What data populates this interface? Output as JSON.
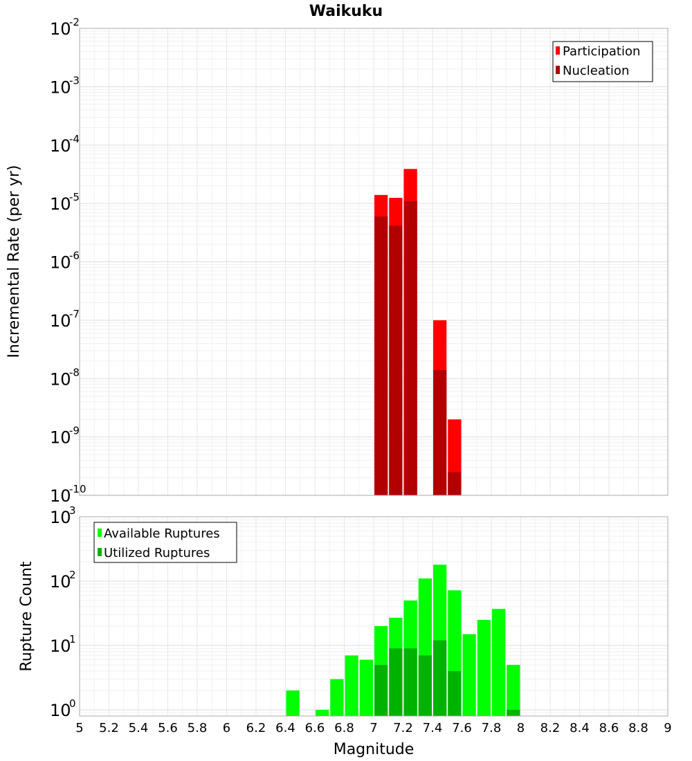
{
  "chart_data": [
    {
      "type": "bar",
      "panel": "top",
      "title": "Waikuku",
      "xlabel": "",
      "ylabel": "Incremental Rate (per yr)",
      "yscale": "log",
      "ylim": [
        1e-10,
        0.01
      ],
      "xlim": [
        5,
        9
      ],
      "y_ticks": [
        {
          "base": "10",
          "exp": "-10",
          "value": 1e-10
        },
        {
          "base": "10",
          "exp": "-9",
          "value": 1e-09
        },
        {
          "base": "10",
          "exp": "-8",
          "value": 1e-08
        },
        {
          "base": "10",
          "exp": "-7",
          "value": 1e-07
        },
        {
          "base": "10",
          "exp": "-6",
          "value": 1e-06
        },
        {
          "base": "10",
          "exp": "-5",
          "value": 1e-05
        },
        {
          "base": "10",
          "exp": "-4",
          "value": 0.0001
        },
        {
          "base": "10",
          "exp": "-3",
          "value": 0.001
        },
        {
          "base": "10",
          "exp": "-2",
          "value": 0.01
        }
      ],
      "legend": [
        {
          "label": "Participation",
          "color": "#ff0000"
        },
        {
          "label": "Nucleation",
          "color": "#b20000"
        }
      ],
      "legend_position": "top-right",
      "series": [
        {
          "name": "Participation",
          "color": "#ff0000",
          "points": [
            {
              "x": 7.05,
              "y": 1.4e-05
            },
            {
              "x": 7.15,
              "y": 1.25e-05
            },
            {
              "x": 7.25,
              "y": 3.9e-05
            },
            {
              "x": 7.45,
              "y": 1e-07
            },
            {
              "x": 7.55,
              "y": 2e-09
            }
          ]
        },
        {
          "name": "Nucleation",
          "color": "#b20000",
          "points": [
            {
              "x": 7.05,
              "y": 6e-06
            },
            {
              "x": 7.15,
              "y": 4.2e-06
            },
            {
              "x": 7.25,
              "y": 1.1e-05
            },
            {
              "x": 7.45,
              "y": 1.4e-08
            },
            {
              "x": 7.55,
              "y": 2.5e-10
            }
          ]
        }
      ]
    },
    {
      "type": "bar",
      "panel": "bottom",
      "xlabel": "Magnitude",
      "ylabel": "Rupture Count",
      "yscale": "log",
      "ylim": [
        0.8,
        1000
      ],
      "xlim": [
        5,
        9
      ],
      "x_ticks": [
        "5",
        "5.2",
        "5.4",
        "5.6",
        "5.8",
        "6",
        "6.2",
        "6.4",
        "6.6",
        "6.8",
        "7",
        "7.2",
        "7.4",
        "7.6",
        "7.8",
        "8",
        "8.2",
        "8.4",
        "8.6",
        "8.8",
        "9"
      ],
      "y_ticks": [
        {
          "base": "10",
          "exp": "0",
          "value": 1
        },
        {
          "base": "10",
          "exp": "1",
          "value": 10
        },
        {
          "base": "10",
          "exp": "2",
          "value": 100
        },
        {
          "base": "10",
          "exp": "3",
          "value": 1000
        }
      ],
      "legend": [
        {
          "label": "Available Ruptures",
          "color": "#00ff00"
        },
        {
          "label": "Utilized Ruptures",
          "color": "#00b200"
        }
      ],
      "legend_position": "top-left",
      "series": [
        {
          "name": "Available Ruptures",
          "color": "#00ff00",
          "points": [
            {
              "x": 6.45,
              "y": 2
            },
            {
              "x": 6.65,
              "y": 1
            },
            {
              "x": 6.75,
              "y": 3
            },
            {
              "x": 6.85,
              "y": 7
            },
            {
              "x": 6.95,
              "y": 6
            },
            {
              "x": 7.05,
              "y": 20
            },
            {
              "x": 7.15,
              "y": 27
            },
            {
              "x": 7.25,
              "y": 50
            },
            {
              "x": 7.35,
              "y": 110
            },
            {
              "x": 7.45,
              "y": 180
            },
            {
              "x": 7.55,
              "y": 72
            },
            {
              "x": 7.65,
              "y": 15
            },
            {
              "x": 7.75,
              "y": 25
            },
            {
              "x": 7.85,
              "y": 37
            },
            {
              "x": 7.95,
              "y": 5
            }
          ]
        },
        {
          "name": "Utilized Ruptures",
          "color": "#00b200",
          "points": [
            {
              "x": 7.05,
              "y": 5
            },
            {
              "x": 7.15,
              "y": 9
            },
            {
              "x": 7.25,
              "y": 9
            },
            {
              "x": 7.35,
              "y": 7
            },
            {
              "x": 7.45,
              "y": 12
            },
            {
              "x": 7.55,
              "y": 4
            },
            {
              "x": 7.95,
              "y": 1
            }
          ]
        }
      ]
    }
  ]
}
